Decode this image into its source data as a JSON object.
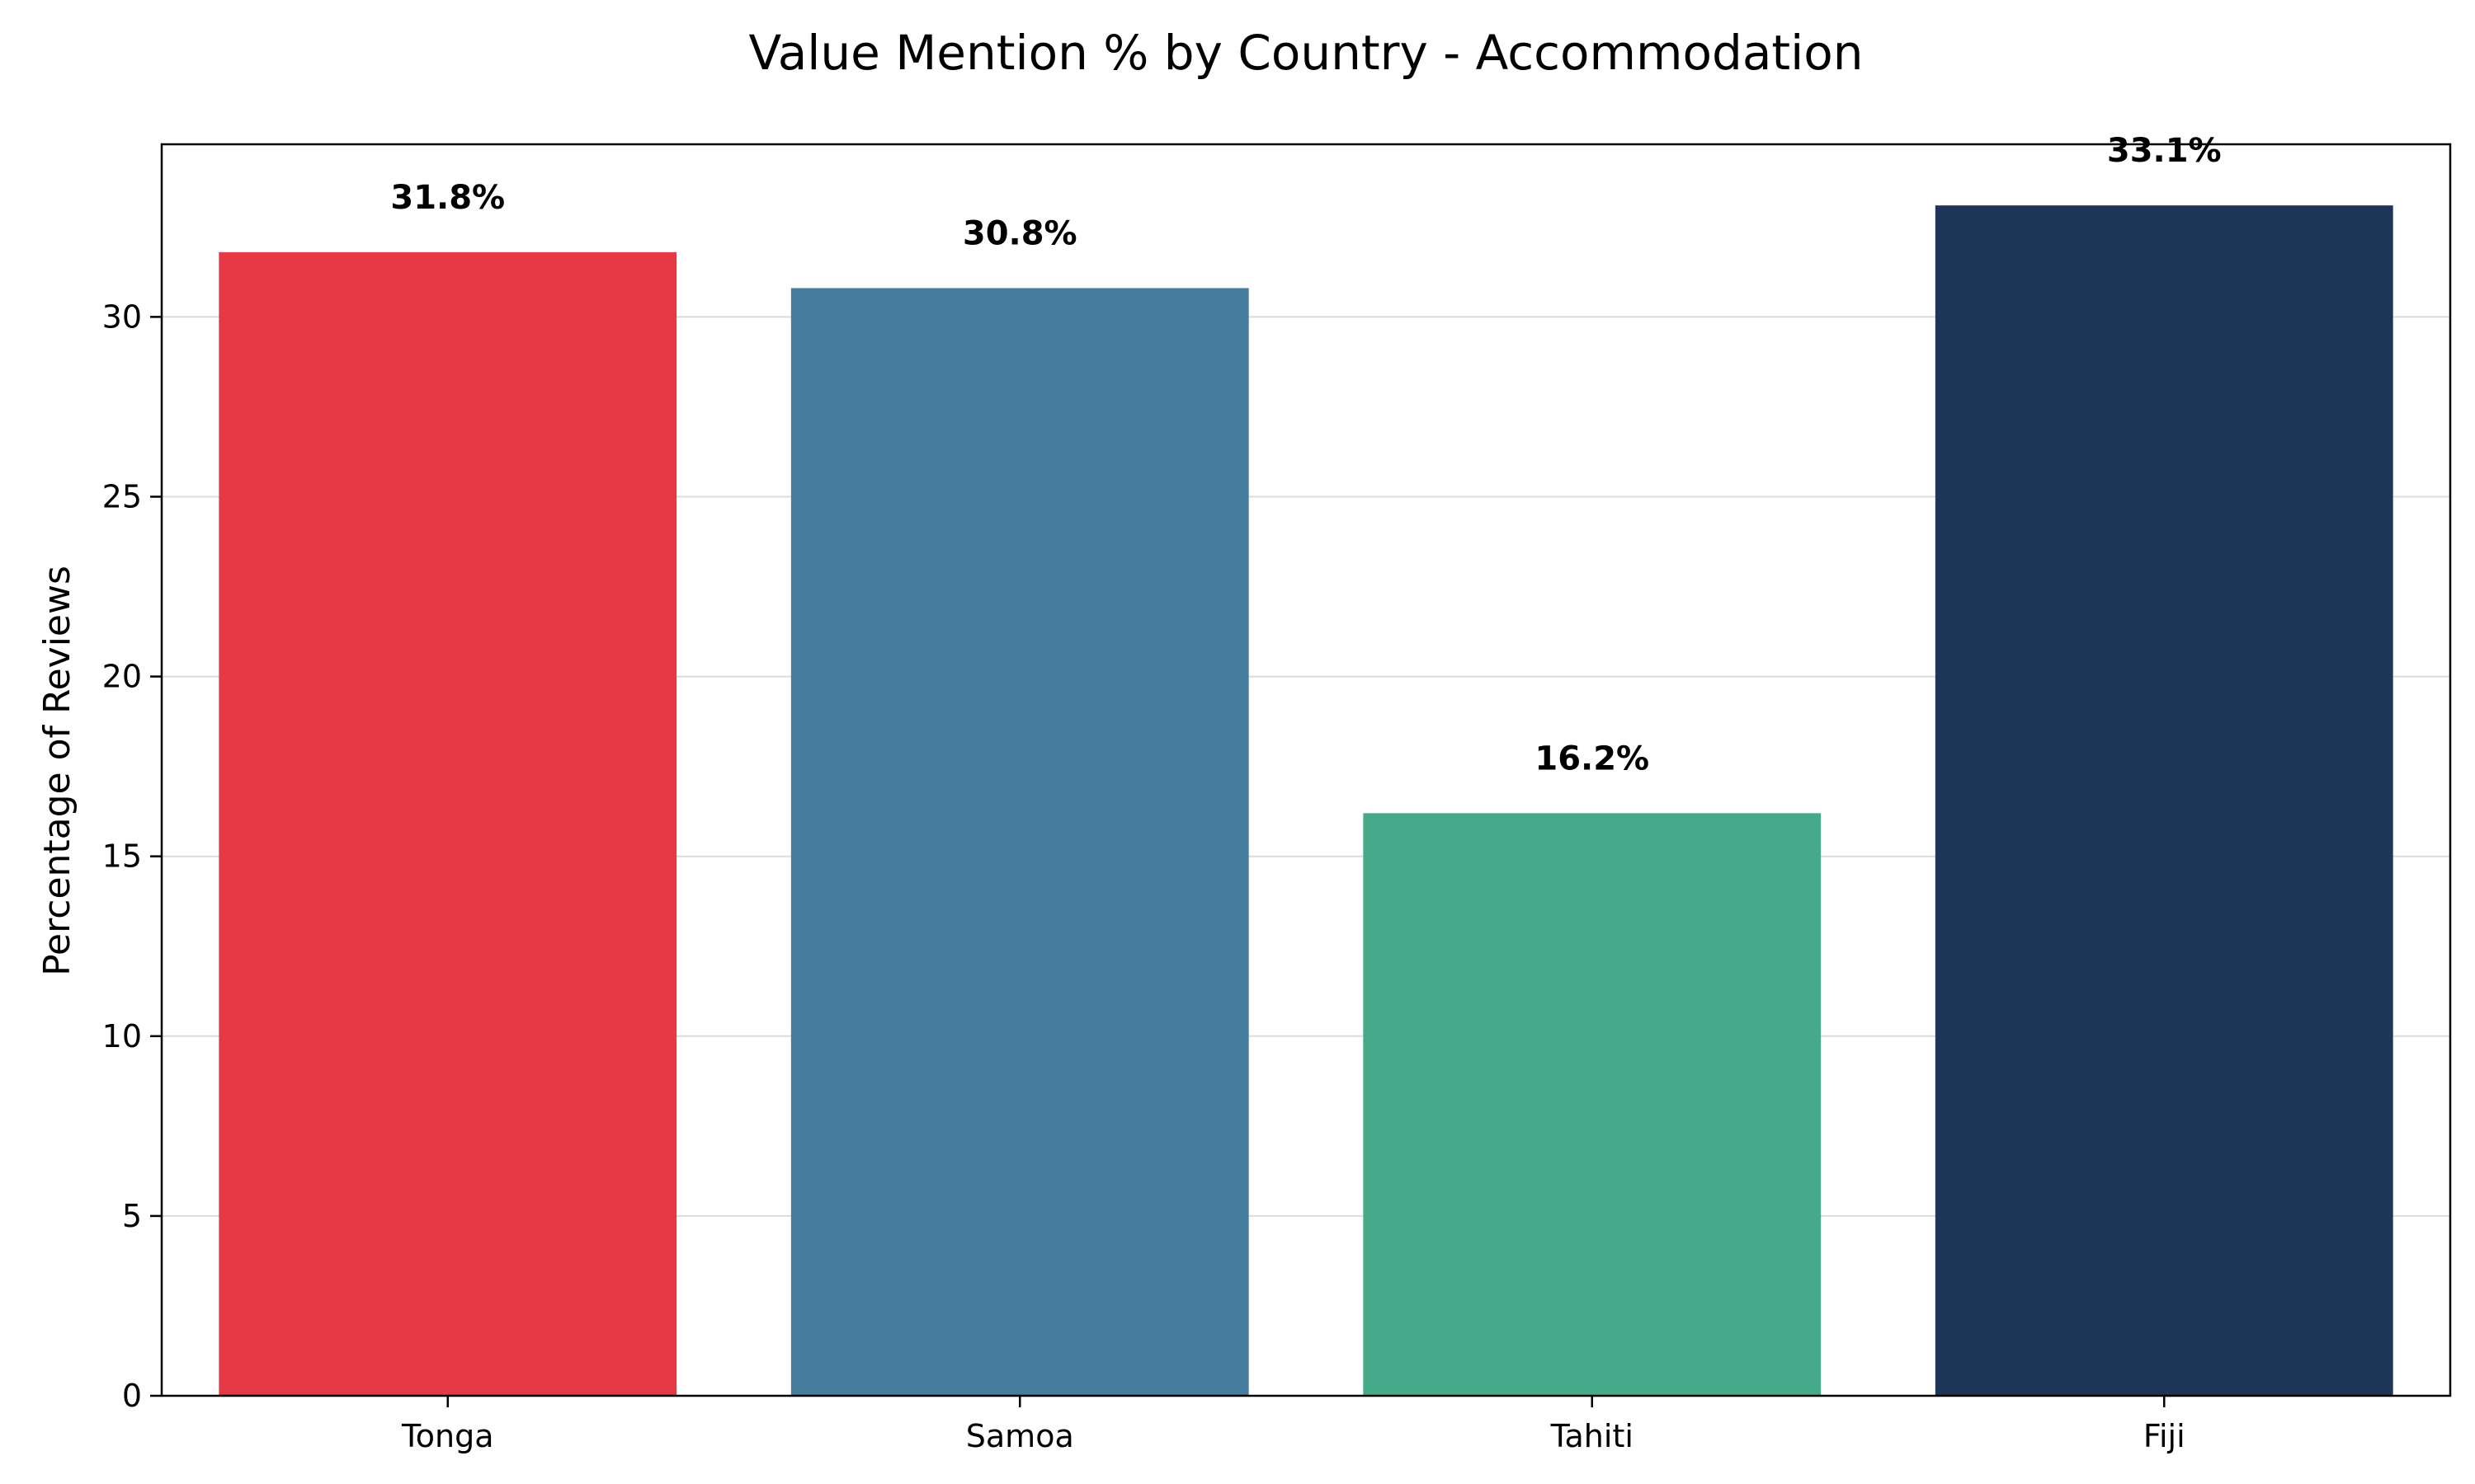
{
  "chart_data": {
    "type": "bar",
    "title": "Value Mention % by Country - Accommodation",
    "xlabel": "",
    "ylabel": "Percentage of Reviews",
    "categories": [
      "Tonga",
      "Samoa",
      "Tahiti",
      "Fiji"
    ],
    "values": [
      31.8,
      30.8,
      16.2,
      33.1
    ],
    "data_labels": [
      "31.8%",
      "30.8%",
      "16.2%",
      "33.1%"
    ],
    "colors": [
      "#e63946",
      "#457b9d",
      "#44aa8a",
      "#1d3557"
    ],
    "ylim": [
      0,
      34.8
    ],
    "yticks": [
      0,
      5,
      10,
      15,
      20,
      25,
      30
    ],
    "grid": "horizontal",
    "legend": "none"
  }
}
